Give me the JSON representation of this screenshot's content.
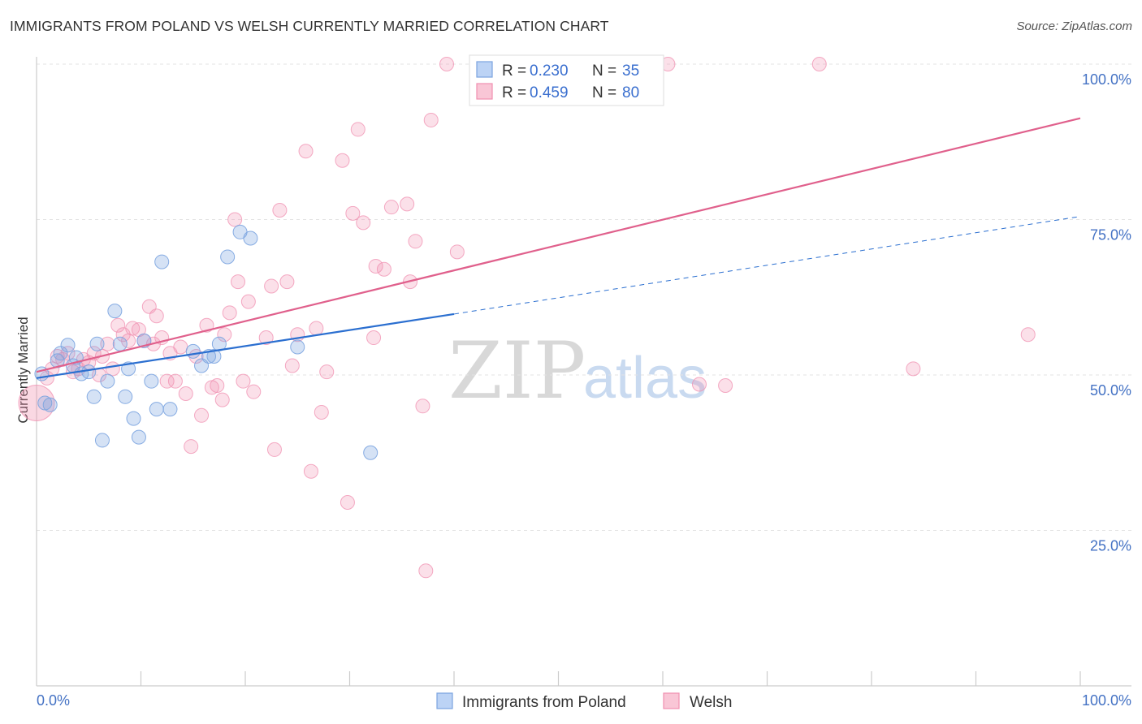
{
  "title": "IMMIGRANTS FROM POLAND VS WELSH CURRENTLY MARRIED CORRELATION CHART",
  "source": "Source: ZipAtlas.com",
  "watermark": {
    "zip": "ZIP",
    "atlas": "atlas"
  },
  "legend": {
    "r_label": "R =",
    "n_label": "N =",
    "rows": [
      {
        "r": "0.230",
        "n": "35"
      },
      {
        "r": "0.459",
        "n": "80"
      }
    ]
  },
  "bottom_legend": [
    "Immigrants from Poland",
    "Welsh"
  ],
  "chart_data": {
    "type": "scatter",
    "title": "IMMIGRANTS FROM POLAND VS WELSH CURRENTLY MARRIED CORRELATION CHART",
    "xlabel": "",
    "ylabel": "Currently Married",
    "xlim": [
      0,
      100
    ],
    "ylim": [
      0,
      100
    ],
    "x_tick_labels": [
      "0.0%",
      "100.0%"
    ],
    "y_ticks": [
      25,
      50,
      75,
      100
    ],
    "y_tick_labels": [
      "25.0%",
      "50.0%",
      "75.0%",
      "100.0%"
    ],
    "grid": true,
    "legend_position": "top-center",
    "colors": {
      "poland": "#7ba4e0",
      "welsh": "#f08fb0",
      "poland_line": "#2b6fd0",
      "welsh_line": "#e0608c"
    },
    "series": [
      {
        "name": "Immigrants from Poland",
        "r": 0.23,
        "n": 35,
        "trend": {
          "x": [
            0,
            40
          ],
          "y": [
            49.5,
            59.8
          ],
          "dashed_to": [
            100,
            75.5
          ]
        },
        "points": [
          [
            0.5,
            50.2
          ],
          [
            0.8,
            45.5
          ],
          [
            1.3,
            45.2
          ],
          [
            2.0,
            52.3
          ],
          [
            2.3,
            53.5
          ],
          [
            3.0,
            54.8
          ],
          [
            3.5,
            51.5
          ],
          [
            3.8,
            52.8
          ],
          [
            4.3,
            50.2
          ],
          [
            5.0,
            50.5
          ],
          [
            5.5,
            46.5
          ],
          [
            5.8,
            55.0
          ],
          [
            6.3,
            39.5
          ],
          [
            6.8,
            49.0
          ],
          [
            7.5,
            60.3
          ],
          [
            8.0,
            55.0
          ],
          [
            8.5,
            46.5
          ],
          [
            8.8,
            51.0
          ],
          [
            9.3,
            43.0
          ],
          [
            9.8,
            40.0
          ],
          [
            10.3,
            55.5
          ],
          [
            11.0,
            49.0
          ],
          [
            11.5,
            44.5
          ],
          [
            12.0,
            68.2
          ],
          [
            12.8,
            44.5
          ],
          [
            15.0,
            53.8
          ],
          [
            15.8,
            51.5
          ],
          [
            16.5,
            53.0
          ],
          [
            17.0,
            53.0
          ],
          [
            17.5,
            55.0
          ],
          [
            18.3,
            69.0
          ],
          [
            19.5,
            73.0
          ],
          [
            20.5,
            72.0
          ],
          [
            25.0,
            54.5
          ],
          [
            32.0,
            37.5
          ]
        ]
      },
      {
        "name": "Welsh",
        "r": 0.459,
        "n": 80,
        "trend": {
          "x": [
            0,
            100
          ],
          "y": [
            50.5,
            91.3
          ]
        },
        "points": [
          [
            0.0,
            45.5
          ],
          [
            1.0,
            49.5
          ],
          [
            1.5,
            51.0
          ],
          [
            2.0,
            53.0
          ],
          [
            2.5,
            52.5
          ],
          [
            3.0,
            53.5
          ],
          [
            3.5,
            50.5
          ],
          [
            4.0,
            51.0
          ],
          [
            4.5,
            52.5
          ],
          [
            5.0,
            52.0
          ],
          [
            5.5,
            53.5
          ],
          [
            6.0,
            50.0
          ],
          [
            6.3,
            53.0
          ],
          [
            6.8,
            55.0
          ],
          [
            7.3,
            51.0
          ],
          [
            7.8,
            58.0
          ],
          [
            8.3,
            56.5
          ],
          [
            8.8,
            55.5
          ],
          [
            9.2,
            57.5
          ],
          [
            9.8,
            57.3
          ],
          [
            10.3,
            55.5
          ],
          [
            10.8,
            61.0
          ],
          [
            11.2,
            55.0
          ],
          [
            11.5,
            59.5
          ],
          [
            12.0,
            56.0
          ],
          [
            12.5,
            49.0
          ],
          [
            12.8,
            53.5
          ],
          [
            13.3,
            49.0
          ],
          [
            13.8,
            54.5
          ],
          [
            14.3,
            47.0
          ],
          [
            14.8,
            38.5
          ],
          [
            15.3,
            53.0
          ],
          [
            15.8,
            43.5
          ],
          [
            16.3,
            58.0
          ],
          [
            16.8,
            48.0
          ],
          [
            17.3,
            48.3
          ],
          [
            17.8,
            46.0
          ],
          [
            18.0,
            56.5
          ],
          [
            18.5,
            60.0
          ],
          [
            19.0,
            75.0
          ],
          [
            19.3,
            65.0
          ],
          [
            19.8,
            49.0
          ],
          [
            20.3,
            61.8
          ],
          [
            20.8,
            47.3
          ],
          [
            22.0,
            56.0
          ],
          [
            22.5,
            64.3
          ],
          [
            22.8,
            38.0
          ],
          [
            23.3,
            76.5
          ],
          [
            24.0,
            65.0
          ],
          [
            24.5,
            51.5
          ],
          [
            25.0,
            56.5
          ],
          [
            25.8,
            86.0
          ],
          [
            26.3,
            34.5
          ],
          [
            26.8,
            57.5
          ],
          [
            27.3,
            44.0
          ],
          [
            27.8,
            50.5
          ],
          [
            29.3,
            84.5
          ],
          [
            29.8,
            29.5
          ],
          [
            30.3,
            76.0
          ],
          [
            30.8,
            89.5
          ],
          [
            31.3,
            74.5
          ],
          [
            32.3,
            56.0
          ],
          [
            32.5,
            67.5
          ],
          [
            33.3,
            67.0
          ],
          [
            34.0,
            77.0
          ],
          [
            35.5,
            77.5
          ],
          [
            35.8,
            65.0
          ],
          [
            36.3,
            71.5
          ],
          [
            37.0,
            45.0
          ],
          [
            37.3,
            18.5
          ],
          [
            37.8,
            91.0
          ],
          [
            39.3,
            100.0
          ],
          [
            40.3,
            69.8
          ],
          [
            43.8,
            94.5
          ],
          [
            60.5,
            100.0
          ],
          [
            63.5,
            48.5
          ],
          [
            66.0,
            48.3
          ],
          [
            75.0,
            100.0
          ],
          [
            84.0,
            51.0
          ],
          [
            95.0,
            56.5
          ]
        ]
      }
    ]
  }
}
